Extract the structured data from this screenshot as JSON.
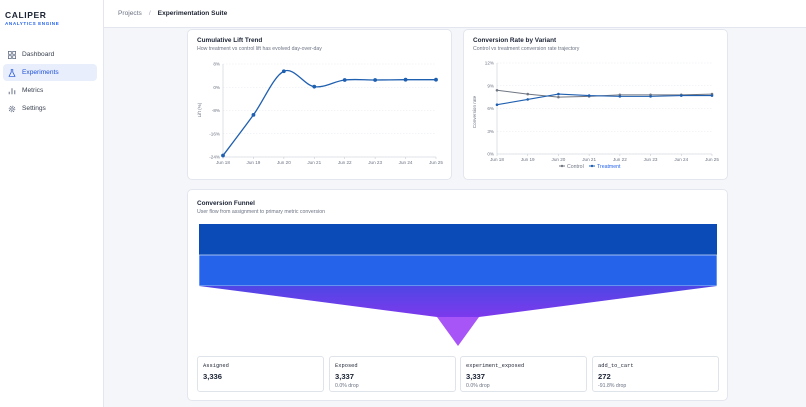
{
  "brand": {
    "name": "CALIPER",
    "tagline": "ANALYTICS ENGINE"
  },
  "sidebar": {
    "items": [
      {
        "label": "Dashboard",
        "icon": "grid-icon",
        "active": false
      },
      {
        "label": "Experiments",
        "icon": "flask-icon",
        "active": true
      },
      {
        "label": "Metrics",
        "icon": "bar-chart-icon",
        "active": false
      },
      {
        "label": "Settings",
        "icon": "gear-icon",
        "active": false
      }
    ]
  },
  "breadcrumb": {
    "root": "Projects",
    "separator": "/",
    "current": "Experimentation Suite"
  },
  "colors": {
    "accent": "#2563eb",
    "series_blue": "#1f5fb0",
    "control_gray": "#6f7682",
    "funnel_top": "#0a4bb8",
    "funnel_mid": "#2563eb",
    "funnel_bottom": "#7c3aed"
  },
  "lift_chart": {
    "title": "Cumulative Lift Trend",
    "subtitle": "How treatment vs control lift has evolved day-over-day",
    "chart_data": {
      "type": "line",
      "x": [
        "Jun 18",
        "Jun 19",
        "Jun 20",
        "Jun 21",
        "Jun 22",
        "Jun 23",
        "Jun 24",
        "Jun 25"
      ],
      "series": [
        {
          "values": [
            -23.5,
            -9.5,
            5.5,
            0.2,
            2.5,
            2.5,
            2.6,
            2.6
          ]
        }
      ],
      "ylabel": "Lift (%)",
      "yticks": [
        "8%",
        "0%",
        "-8%",
        "-16%",
        "-24%"
      ],
      "ylim": [
        -24,
        8
      ],
      "grid": true
    }
  },
  "rate_chart": {
    "title": "Conversion Rate by Variant",
    "subtitle": "Control vs treatment conversion rate trajectory",
    "chart_data": {
      "type": "line",
      "x": [
        "Jun 18",
        "Jun 19",
        "Jun 20",
        "Jun 21",
        "Jun 22",
        "Jun 23",
        "Jun 24",
        "Jun 25"
      ],
      "series": [
        {
          "name": "Control",
          "values": [
            8.4,
            7.9,
            7.5,
            7.6,
            7.8,
            7.8,
            7.8,
            7.9
          ]
        },
        {
          "name": "Treatment",
          "values": [
            6.5,
            7.2,
            7.9,
            7.7,
            7.6,
            7.6,
            7.7,
            7.7
          ]
        }
      ],
      "ylabel": "Conversion rate",
      "yticks": [
        "12%",
        "9%",
        "6%",
        "3%",
        "0%"
      ],
      "ylim": [
        0,
        12
      ],
      "grid": true,
      "legend": "bottom"
    }
  },
  "funnel": {
    "title": "Conversion Funnel",
    "subtitle": "User flow from assignment to primary metric conversion",
    "chart_data": {
      "type": "funnel",
      "stages": [
        {
          "label": "Assigned",
          "value": "3,336",
          "drop": "",
          "count": 3336
        },
        {
          "label": "Exposed",
          "value": "3,337",
          "drop": "0.0% drop",
          "count": 3337
        },
        {
          "label": "experiment_exposed",
          "value": "3,337",
          "drop": "0.0% drop",
          "count": 3337
        },
        {
          "label": "add_to_cart",
          "value": "272",
          "drop": "-91.8% drop",
          "count": 272
        }
      ]
    }
  }
}
